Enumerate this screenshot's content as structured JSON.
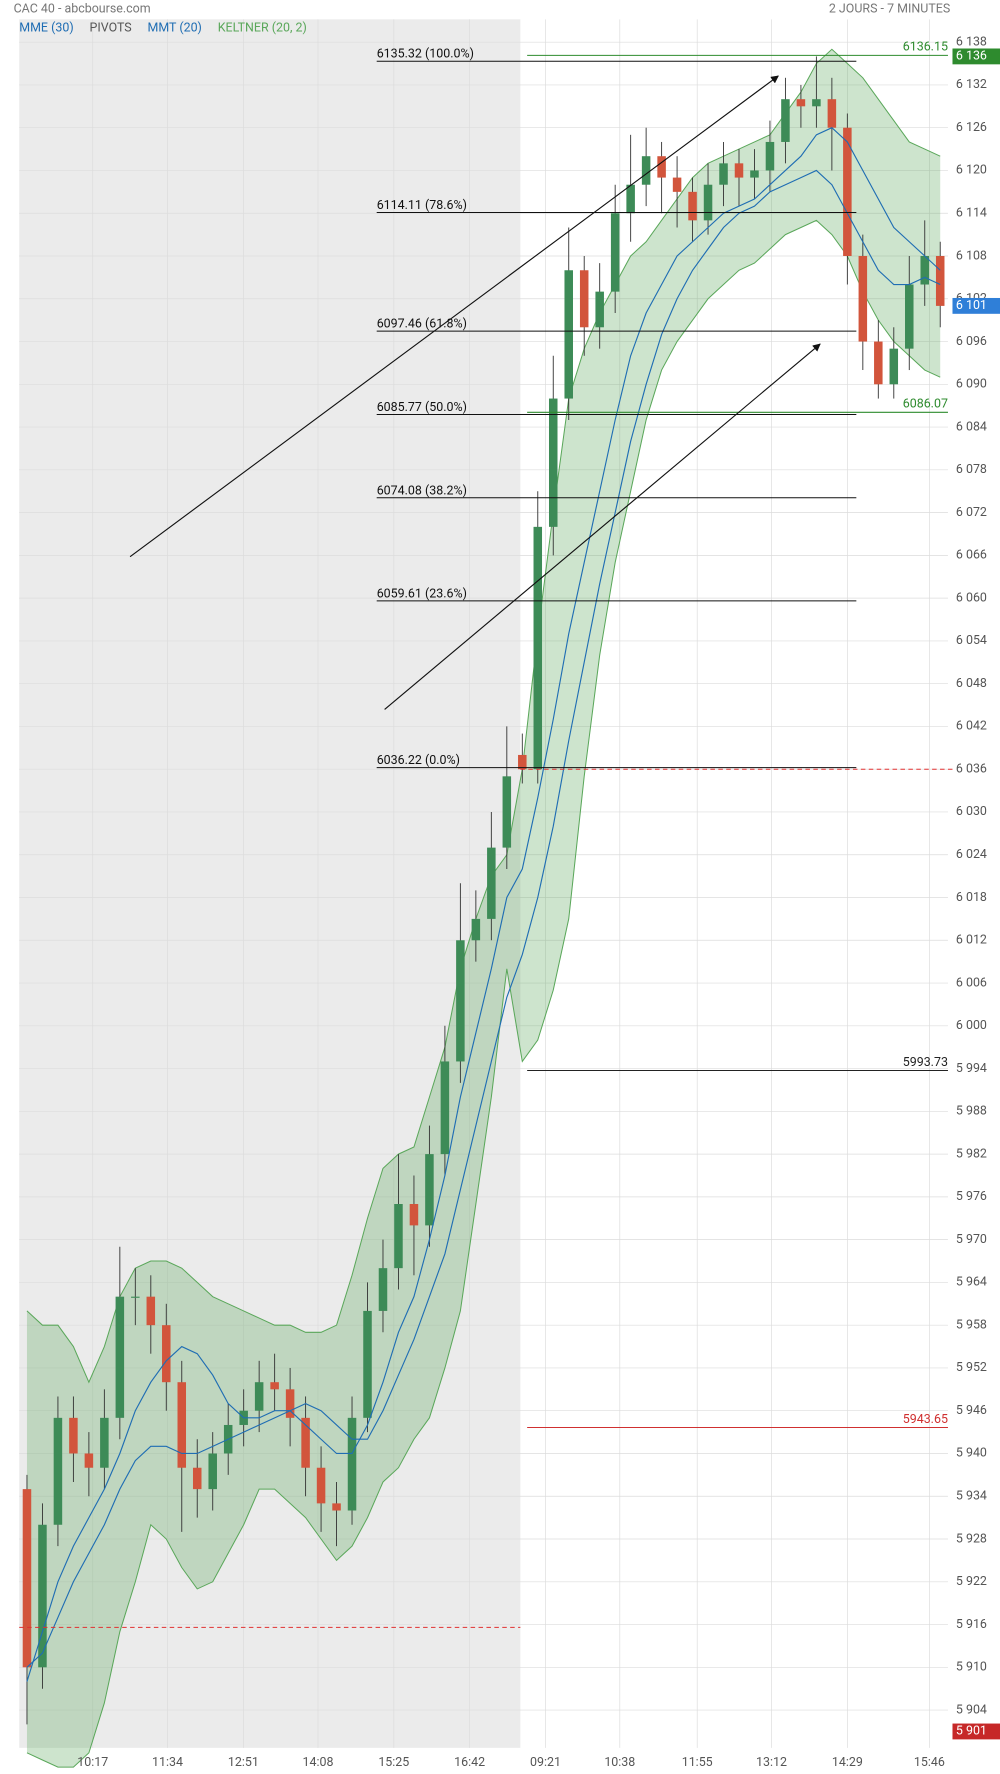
{
  "chart_data": {
    "type": "candlestick",
    "title": "CAC 40 - abcbourse.com",
    "subtitle": "2 JOURS - 7 MINUTES",
    "up_color": "#3d8b57",
    "down_color": "#d2553c",
    "candles": {
      "open": [
        5935,
        5910,
        5930,
        5945,
        5940,
        5938,
        5945,
        5962,
        5962,
        5958,
        5950,
        5938,
        5935,
        5940,
        5944,
        5946,
        5950,
        5949,
        5945,
        5938,
        5933,
        5932,
        5945,
        5960,
        5966,
        5975,
        5972,
        5982,
        5995,
        6012,
        6015,
        6025,
        6038,
        6036,
        6070,
        6088,
        6106,
        6098,
        6103,
        6114,
        6118,
        6122,
        6119,
        6117,
        6113,
        6118,
        6121,
        6119,
        6120,
        6124,
        6130,
        6129,
        6130,
        6126,
        6108,
        6096,
        6090,
        6095,
        6104,
        6108
      ],
      "high": [
        5937,
        5933,
        5948,
        5948,
        5943,
        5949,
        5969,
        5966,
        5965,
        5961,
        5953,
        5942,
        5943,
        5947,
        5949,
        5953,
        5954,
        5952,
        5948,
        5941,
        5936,
        5948,
        5964,
        5970,
        5982,
        5979,
        5986,
        6000,
        6020,
        6019,
        6030,
        6042,
        6041,
        6075,
        6094,
        6112,
        6108,
        6107,
        6118,
        6125,
        6126,
        6124,
        6122,
        6119,
        6121,
        6124,
        6123,
        6123,
        6127,
        6133,
        6132,
        6136,
        6133,
        6128,
        6111,
        6099,
        6098,
        6108,
        6113,
        6110
      ],
      "low": [
        5902,
        5907,
        5927,
        5936,
        5934,
        5935,
        5942,
        5958,
        5954,
        5946,
        5929,
        5931,
        5932,
        5937,
        5941,
        5943,
        5946,
        5941,
        5934,
        5929,
        5927,
        5930,
        5943,
        5957,
        5963,
        5965,
        5969,
        5979,
        5992,
        6009,
        6012,
        6022,
        6034,
        6034,
        6066,
        6085,
        6094,
        6095,
        6100,
        6110,
        6115,
        6114,
        6112,
        6110,
        6111,
        6115,
        6115,
        6116,
        6117,
        6121,
        6126,
        6126,
        6120,
        6104,
        6092,
        6088,
        6088,
        6092,
        6101,
        6098
      ],
      "close": [
        5910,
        5930,
        5945,
        5940,
        5938,
        5945,
        5962,
        5962,
        5958,
        5950,
        5938,
        5935,
        5940,
        5944,
        5946,
        5950,
        5949,
        5945,
        5938,
        5933,
        5932,
        5945,
        5960,
        5966,
        5975,
        5972,
        5982,
        5995,
        6012,
        6015,
        6025,
        6035,
        6036,
        6070,
        6088,
        6106,
        6098,
        6103,
        6114,
        6118,
        6122,
        6119,
        6117,
        6113,
        6118,
        6121,
        6119,
        6120,
        6124,
        6130,
        6129,
        6130,
        6126,
        6108,
        6096,
        6090,
        6095,
        6104,
        6108,
        6101
      ]
    },
    "series": [
      {
        "name": "MME (30)",
        "color": "#1f6db3",
        "values": [
          5908,
          5915,
          5922,
          5927,
          5931,
          5935,
          5940,
          5946,
          5950,
          5953,
          5955,
          5954,
          5951,
          5947,
          5945,
          5945,
          5946,
          5946,
          5944,
          5942,
          5940,
          5940,
          5944,
          5950,
          5957,
          5962,
          5970,
          5979,
          5990,
          5999,
          6008,
          6018,
          6022,
          6032,
          6043,
          6055,
          6065,
          6075,
          6085,
          6094,
          6100,
          6104,
          6108,
          6110,
          6112,
          6114,
          6115,
          6116,
          6118,
          6120,
          6122,
          6125,
          6126,
          6124,
          6120,
          6116,
          6112,
          6110,
          6108,
          6106
        ]
      },
      {
        "name": "PIVOTS",
        "color": "#555555",
        "levels": [
          6136.15,
          6086.07,
          5993.73,
          5943.65
        ],
        "colors": [
          "#2e8b2e",
          "#2e8b2e",
          "#222222",
          "#d03030"
        ]
      },
      {
        "name": "MMT (20)",
        "color": "#1f6db3",
        "values": [
          5910,
          5912,
          5917,
          5922,
          5926,
          5930,
          5935,
          5939,
          5941,
          5941,
          5940,
          5940,
          5941,
          5942,
          5943,
          5944,
          5945,
          5946,
          5947,
          5946,
          5944,
          5942,
          5942,
          5946,
          5951,
          5956,
          5962,
          5968,
          5977,
          5986,
          5995,
          6004,
          6010,
          6018,
          6028,
          6040,
          6051,
          6062,
          6072,
          6082,
          6090,
          6097,
          6102,
          6106,
          6109,
          6112,
          6114,
          6115,
          6117,
          6118,
          6119,
          6120,
          6118,
          6114,
          6110,
          6106,
          6104,
          6104,
          6105,
          6104
        ]
      },
      {
        "name": "KELTNER (20, 2)",
        "color": "#5aa75a",
        "upper": [
          5960,
          5958,
          5958,
          5955,
          5950,
          5955,
          5962,
          5966,
          5967,
          5967,
          5966,
          5964,
          5962,
          5961,
          5960,
          5959,
          5958,
          5958,
          5957,
          5957,
          5958,
          5965,
          5973,
          5980,
          5982,
          5983,
          5990,
          5997,
          6008,
          6015,
          6021,
          6024,
          6036,
          6055,
          6072,
          6088,
          6095,
          6100,
          6104,
          6108,
          6110,
          6113,
          6116,
          6119,
          6121,
          6122,
          6123,
          6124,
          6125,
          6128,
          6131,
          6135,
          6137,
          6135,
          6133,
          6130,
          6127,
          6124,
          6123,
          6122
        ],
        "lower": [
          5898,
          5897,
          5896,
          5896,
          5898,
          5905,
          5915,
          5922,
          5930,
          5928,
          5924,
          5921,
          5922,
          5926,
          5930,
          5935,
          5935,
          5933,
          5931,
          5928,
          5925,
          5927,
          5931,
          5936,
          5938,
          5942,
          5945,
          5952,
          5960,
          5975,
          5990,
          6008,
          5995,
          5998,
          6005,
          6015,
          6035,
          6052,
          6065,
          6075,
          6085,
          6092,
          6096,
          6099,
          6102,
          6104,
          6106,
          6107,
          6109,
          6111,
          6112,
          6113,
          6111,
          6108,
          6103,
          6099,
          6096,
          6094,
          6092,
          6091
        ]
      }
    ],
    "fibonacci": [
      {
        "value": 6135.32,
        "label": "6135.32  (100.0%)"
      },
      {
        "value": 6114.11,
        "label": "6114.11  (78.6%)"
      },
      {
        "value": 6097.46,
        "label": "6097.46  (61.8%)"
      },
      {
        "value": 6085.77,
        "label": "6085.77  (50.0%)"
      },
      {
        "value": 6074.08,
        "label": "6074.08  (38.2%)"
      },
      {
        "value": 6059.61,
        "label": "6059.61  (23.6%)"
      },
      {
        "value": 6036.22,
        "label": "6036.22  (0.0%)"
      }
    ],
    "dashed_levels": [
      6036,
      5915.6
    ],
    "price_tags": [
      {
        "value": 6136,
        "label": "6 136",
        "color": "#2e8b2e"
      },
      {
        "value": 6101,
        "label": "6 101",
        "color": "#2f7fd8"
      },
      {
        "value": 5901,
        "label": "5 901",
        "color": "#c62828"
      }
    ],
    "xlim": [
      -0.5,
      59.5
    ],
    "xticks": [
      {
        "value": 4.25,
        "label": "10:17"
      },
      {
        "value": 9.08,
        "label": "11:34"
      },
      {
        "value": 13.98,
        "label": "12:51"
      },
      {
        "value": 18.8,
        "label": "14:08"
      },
      {
        "value": 23.7,
        "label": "15:25"
      },
      {
        "value": 28.6,
        "label": "16:42"
      },
      {
        "value": 33.5,
        "label": "09:21"
      },
      {
        "value": 38.3,
        "label": "10:38"
      },
      {
        "value": 43.3,
        "label": "11:55"
      },
      {
        "value": 48.1,
        "label": "13:12"
      },
      {
        "value": 53.0,
        "label": "14:29"
      },
      {
        "value": 58.3,
        "label": "15:46"
      }
    ],
    "ylim": [
      5898.7,
      6141.2
    ],
    "yticks": [
      {
        "value": 5904,
        "label": "5 904"
      },
      {
        "value": 5910,
        "label": "5 910"
      },
      {
        "value": 5916,
        "label": "5 916"
      },
      {
        "value": 5922,
        "label": "5 922"
      },
      {
        "value": 5928,
        "label": "5 928"
      },
      {
        "value": 5934,
        "label": "5 934"
      },
      {
        "value": 5940,
        "label": "5 940"
      },
      {
        "value": 5946,
        "label": "5 946"
      },
      {
        "value": 5952,
        "label": "5 952"
      },
      {
        "value": 5958,
        "label": "5 958"
      },
      {
        "value": 5964,
        "label": "5 964"
      },
      {
        "value": 5970,
        "label": "5 970"
      },
      {
        "value": 5976,
        "label": "5 976"
      },
      {
        "value": 5982,
        "label": "5 982"
      },
      {
        "value": 5988,
        "label": "5 988"
      },
      {
        "value": 5994,
        "label": "5 994"
      },
      {
        "value": 6000,
        "label": "6 000"
      },
      {
        "value": 6006,
        "label": "6 006"
      },
      {
        "value": 6012,
        "label": "6 012"
      },
      {
        "value": 6018,
        "label": "6 018"
      },
      {
        "value": 6024,
        "label": "6 024"
      },
      {
        "value": 6030,
        "label": "6 030"
      },
      {
        "value": 6036,
        "label": "6 036"
      },
      {
        "value": 6042,
        "label": "6 042"
      },
      {
        "value": 6048,
        "label": "6 048"
      },
      {
        "value": 6054,
        "label": "6 054"
      },
      {
        "value": 6060,
        "label": "6 060"
      },
      {
        "value": 6066,
        "label": "6 066"
      },
      {
        "value": 6072,
        "label": "6 072"
      },
      {
        "value": 6078,
        "label": "6 078"
      },
      {
        "value": 6084,
        "label": "6 084"
      },
      {
        "value": 6090,
        "label": "6 090"
      },
      {
        "value": 6096,
        "label": "6 096"
      },
      {
        "value": 6102,
        "label": "6 102"
      },
      {
        "value": 6108,
        "label": "6 108"
      },
      {
        "value": 6114,
        "label": "6 114"
      },
      {
        "value": 6120,
        "label": "6 120"
      },
      {
        "value": 6126,
        "label": "6 126"
      },
      {
        "value": 6132,
        "label": "6 132"
      },
      {
        "value": 6138,
        "label": "6 138"
      }
    ],
    "grid": true
  }
}
